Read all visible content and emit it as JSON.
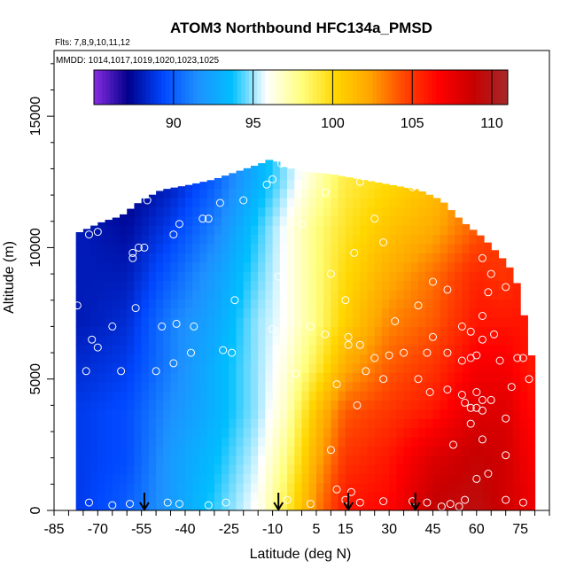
{
  "chart_data": {
    "type": "heatmap",
    "title": "ATOM3 Northbound HFC134a_PMSD",
    "subtitle_flights": "Flts: 7,8,9,10,11,12",
    "subtitle_dates": "MMDD: 1014,1017,1019,1020,1023,1025",
    "xlabel": "Latitude (deg N)",
    "ylabel": "Altitude (m)",
    "xlim": [
      -85,
      85
    ],
    "ylim": [
      0,
      17500
    ],
    "x_ticks": [
      -85,
      -70,
      -55,
      -40,
      -25,
      -10,
      5,
      15,
      30,
      45,
      60,
      75
    ],
    "y_ticks": [
      0,
      5000,
      10000,
      15000
    ],
    "colorbar": {
      "range": [
        85,
        111
      ],
      "ticks": [
        90,
        95,
        100,
        105,
        110
      ],
      "colors": [
        "#8a2be2",
        "#00008b",
        "#0047ff",
        "#1e90ff",
        "#00bfff",
        "#ffffff",
        "#ffff80",
        "#ffd700",
        "#ffa500",
        "#ff4500",
        "#ff0000",
        "#c80000",
        "#a52a2a"
      ]
    },
    "envelope_top_alt": [
      [
        -78,
        10500
      ],
      [
        -74,
        10700
      ],
      [
        -68,
        11000
      ],
      [
        -62,
        11200
      ],
      [
        -55,
        11800
      ],
      [
        -48,
        12200
      ],
      [
        -38,
        12400
      ],
      [
        -30,
        12600
      ],
      [
        -22,
        12900
      ],
      [
        -14,
        13200
      ],
      [
        -10,
        13400
      ],
      [
        -7,
        13100
      ],
      [
        0,
        12900
      ],
      [
        10,
        12800
      ],
      [
        20,
        12600
      ],
      [
        30,
        12400
      ],
      [
        40,
        12200
      ],
      [
        48,
        11800
      ],
      [
        55,
        11000
      ],
      [
        62,
        10400
      ],
      [
        68,
        9700
      ],
      [
        73,
        9000
      ],
      [
        76,
        7600
      ],
      [
        78,
        6200
      ],
      [
        80,
        5400
      ]
    ],
    "value_samples": [
      {
        "lat": -75,
        "values": [
          89,
          89,
          89,
          88.5,
          88,
          88,
          88,
          87.5
        ]
      },
      {
        "lat": -60,
        "values": [
          90,
          89.5,
          89.5,
          89,
          88.5,
          88,
          87.5,
          87
        ]
      },
      {
        "lat": -45,
        "values": [
          92,
          92,
          91.5,
          91,
          91,
          90,
          89,
          88
        ]
      },
      {
        "lat": -30,
        "values": [
          94,
          93.5,
          93,
          93,
          92.5,
          92,
          91,
          90
        ]
      },
      {
        "lat": -15,
        "values": [
          96,
          95.5,
          95,
          95,
          95,
          94.5,
          94,
          93
        ]
      },
      {
        "lat": -5,
        "values": [
          99,
          98,
          97,
          96.5,
          96,
          96,
          96,
          95
        ]
      },
      {
        "lat": 5,
        "values": [
          103,
          102,
          101,
          99,
          98,
          98,
          98,
          97
        ]
      },
      {
        "lat": 15,
        "values": [
          106,
          105,
          104,
          102,
          100.5,
          100,
          99.5,
          99
        ]
      },
      {
        "lat": 30,
        "values": [
          106.5,
          106,
          105,
          104,
          103,
          102,
          101,
          100
        ]
      },
      {
        "lat": 45,
        "values": [
          109,
          108,
          106,
          105,
          104,
          103.5,
          102,
          101
        ]
      },
      {
        "lat": 60,
        "values": [
          109.5,
          109,
          108,
          107,
          106,
          105.5,
          104
        ]
      },
      {
        "lat": 70,
        "values": [
          108.5,
          108.5,
          108,
          107,
          106,
          105
        ]
      },
      {
        "lat": 78,
        "values": [
          107.5,
          107,
          106.5,
          106
        ]
      }
    ],
    "value_sample_altitudes": [
      250,
      2000,
      3800,
      5500,
      7200,
      9000,
      10800,
      12600
    ],
    "arrows_lat": [
      -54,
      -8,
      16,
      39
    ],
    "sample_points": [
      [
        -77,
        7800
      ],
      [
        -72,
        6500
      ],
      [
        -70,
        6200
      ],
      [
        -74,
        5300
      ],
      [
        -65,
        7000
      ],
      [
        -57,
        7700
      ],
      [
        -48,
        7000
      ],
      [
        -43,
        7100
      ],
      [
        -37,
        7000
      ],
      [
        -38,
        6000
      ],
      [
        -44,
        5600
      ],
      [
        -50,
        5300
      ],
      [
        -62,
        5300
      ],
      [
        -27,
        6100
      ],
      [
        -24,
        6000
      ],
      [
        -10,
        6900
      ],
      [
        -2,
        5200
      ],
      [
        3,
        7000
      ],
      [
        -73,
        10500
      ],
      [
        -70,
        10600
      ],
      [
        -58,
        9800
      ],
      [
        -56,
        10000
      ],
      [
        -54,
        10000
      ],
      [
        -58,
        9600
      ],
      [
        -44,
        10500
      ],
      [
        -42,
        10900
      ],
      [
        -34,
        11100
      ],
      [
        -32,
        11100
      ],
      [
        -28,
        11700
      ],
      [
        -20,
        11800
      ],
      [
        -12,
        12400
      ],
      [
        -10,
        12600
      ],
      [
        -7,
        13200
      ],
      [
        -5,
        13200
      ],
      [
        -53,
        11800
      ],
      [
        -23,
        8000
      ],
      [
        -8,
        8900
      ],
      [
        0,
        10900
      ],
      [
        8,
        12100
      ],
      [
        20,
        12500
      ],
      [
        25,
        11100
      ],
      [
        28,
        10200
      ],
      [
        38,
        12300
      ],
      [
        18,
        9800
      ],
      [
        10,
        9000
      ],
      [
        15,
        8000
      ],
      [
        8,
        6700
      ],
      [
        16,
        6300
      ],
      [
        20,
        6300
      ],
      [
        25,
        5800
      ],
      [
        30,
        5900
      ],
      [
        35,
        6000
      ],
      [
        32,
        7200
      ],
      [
        40,
        7800
      ],
      [
        45,
        8700
      ],
      [
        50,
        8400
      ],
      [
        45,
        6600
      ],
      [
        50,
        6000
      ],
      [
        55,
        5700
      ],
      [
        58,
        5800
      ],
      [
        60,
        5900
      ],
      [
        62,
        6500
      ],
      [
        62,
        7400
      ],
      [
        64,
        8300
      ],
      [
        65,
        9000
      ],
      [
        70,
        8500
      ],
      [
        62,
        9600
      ],
      [
        55,
        7000
      ],
      [
        58,
        6800
      ],
      [
        66,
        6700
      ],
      [
        68,
        5700
      ],
      [
        74,
        5800
      ],
      [
        76,
        5800
      ],
      [
        50,
        4600
      ],
      [
        40,
        5000
      ],
      [
        44,
        4500
      ],
      [
        55,
        4400
      ],
      [
        56,
        4100
      ],
      [
        58,
        3900
      ],
      [
        60,
        4500
      ],
      [
        58,
        3300
      ],
      [
        60,
        3900
      ],
      [
        62,
        3800
      ],
      [
        62,
        4200
      ],
      [
        65,
        4200
      ],
      [
        62,
        2700
      ],
      [
        70,
        2100
      ],
      [
        64,
        1400
      ],
      [
        10,
        2300
      ],
      [
        12,
        800
      ],
      [
        17,
        700
      ],
      [
        20,
        300
      ],
      [
        28,
        350
      ],
      [
        38,
        350
      ],
      [
        43,
        300
      ],
      [
        48,
        150
      ],
      [
        51,
        250
      ],
      [
        54,
        150
      ],
      [
        -73,
        300
      ],
      [
        -65,
        200
      ],
      [
        -59,
        250
      ],
      [
        -46,
        300
      ],
      [
        -42,
        250
      ],
      [
        -32,
        200
      ],
      [
        -26,
        300
      ],
      [
        -14,
        200
      ],
      [
        -5,
        400
      ],
      [
        3,
        250
      ],
      [
        15,
        400
      ],
      [
        22,
        5300
      ],
      [
        19,
        4000
      ],
      [
        12,
        4800
      ],
      [
        16,
        6600
      ],
      [
        28,
        5000
      ],
      [
        56,
        400
      ],
      [
        60,
        1200
      ],
      [
        70,
        400
      ],
      [
        76,
        300
      ],
      [
        72,
        4700
      ],
      [
        70,
        3500
      ],
      [
        78,
        5000
      ],
      [
        52,
        2500
      ],
      [
        43,
        6000
      ]
    ]
  }
}
